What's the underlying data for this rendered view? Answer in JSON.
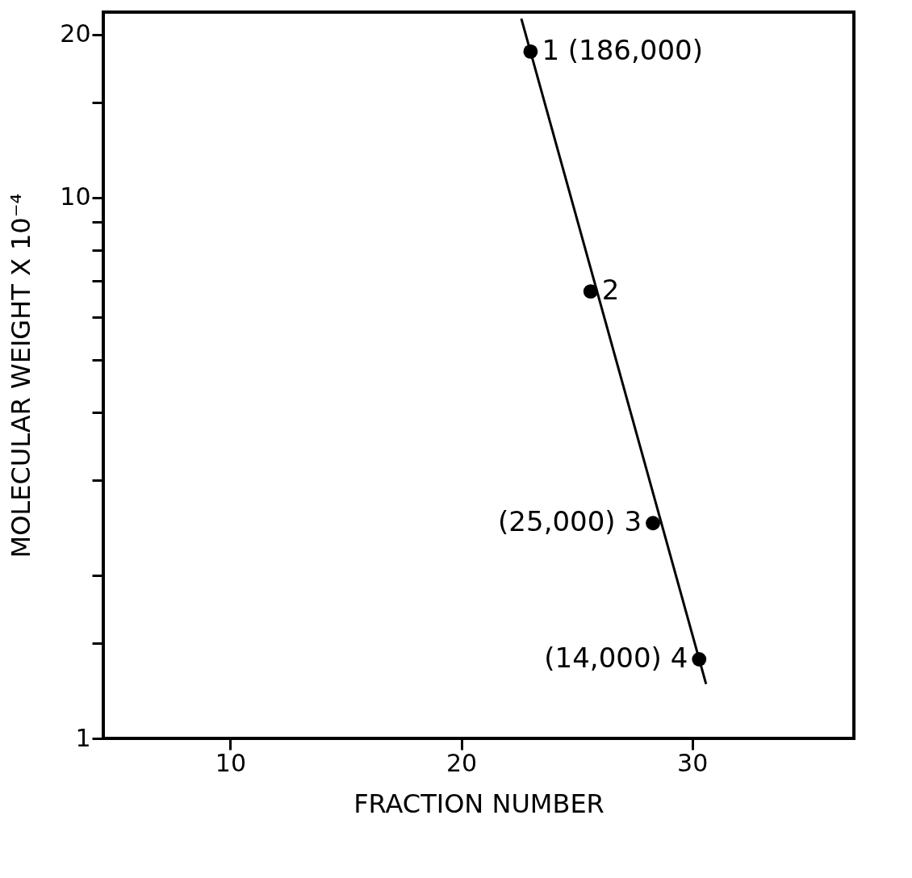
{
  "chart_data": {
    "type": "scatter",
    "xlabel": "FRACTION NUMBER",
    "ylabel": "MOLECULAR  WEIGHT X 10⁻⁴",
    "log": "y",
    "grid": false,
    "marker": "circle",
    "xlim": [
      4.5,
      37
    ],
    "ylim": [
      1,
      22
    ],
    "xticks": [
      10,
      20,
      30
    ],
    "yticks": [
      1,
      {
        "value": 1.5,
        "label": null
      },
      {
        "value": 2,
        "label": null
      },
      {
        "value": 3,
        "label": null
      },
      {
        "value": 4,
        "label": null
      },
      {
        "value": 5,
        "label": null
      },
      {
        "value": 6,
        "label": null
      },
      {
        "value": 7,
        "label": null
      },
      {
        "value": 8,
        "label": null
      },
      {
        "value": 9,
        "label": null
      },
      10,
      {
        "value": 15,
        "label": null
      },
      20
    ],
    "series": [
      {
        "color": "#000000",
        "x": [
          23.0,
          25.6,
          28.3,
          30.3
        ],
        "values": [
          18.6,
          6.7,
          2.5,
          1.4
        ]
      },
      {
        "type": "line",
        "color": "#000000",
        "line_style": "solid",
        "marker": "none",
        "x": [
          22.6,
          30.6
        ],
        "values": [
          21.4,
          1.26
        ]
      }
    ],
    "annotations": [
      {
        "text": "1  (186,000)",
        "x": 23.0,
        "y": 18.6
      },
      {
        "text": "2",
        "x": 25.6,
        "y": 6.7
      },
      {
        "text": "(25,000) 3",
        "x": 28.3,
        "y": 2.5
      },
      {
        "text": "(14,000) 4",
        "x": 30.3,
        "y": 1.4
      }
    ]
  }
}
